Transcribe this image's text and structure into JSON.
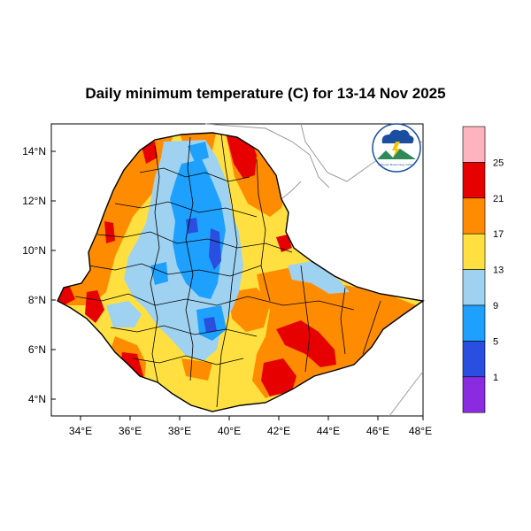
{
  "title": "Daily minimum temperature (C) for 13-14 Nov 2025",
  "lat_labels": [
    "14°N",
    "12°N",
    "10°N",
    "8°N",
    "6°N",
    "4°N"
  ],
  "lon_labels": [
    "34°E",
    "36°E",
    "38°E",
    "40°E",
    "42°E",
    "44°E",
    "46°E",
    "48°E"
  ],
  "colorbar": {
    "labels": [
      "25",
      "21",
      "17",
      "13",
      "9",
      "5",
      "1"
    ],
    "colors": [
      "#ffb3bf",
      "#e60000",
      "#ff8c00",
      "#ffe040",
      "#9fd2f0",
      "#1ea0ff",
      "#2a4ee0",
      "#8a2be2"
    ]
  },
  "logo": {
    "label": "Ethiopian Meteorology Institute logo",
    "text": "Ethiopian Meteorology Institute"
  },
  "map": {
    "region": "Ethiopia",
    "palette": {
      "country_base": "#ffe040",
      "cool": "#9fd2f0",
      "cold": "#1ea0ff",
      "colder": "#2a4ee0",
      "warm": "#ff8c00",
      "hot": "#e60000",
      "neighbor_border": "#999999",
      "admin_border": "#000000"
    }
  }
}
